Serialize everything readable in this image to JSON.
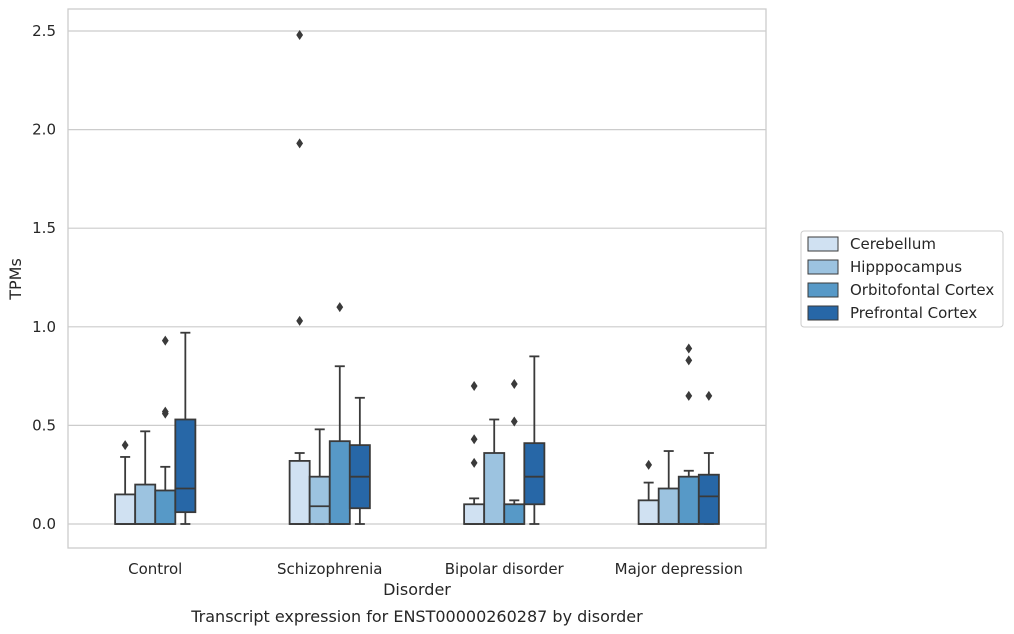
{
  "chart_data": {
    "type": "boxplot",
    "xlabel": "Disorder",
    "ylabel": "TPMs",
    "caption": "Transcript expression for ENST00000260287 by disorder",
    "ylim": [
      -0.12,
      2.62
    ],
    "yticks": [
      "0.0",
      "0.5",
      "1.0",
      "1.5",
      "2.0",
      "2.5"
    ],
    "grid": true,
    "legend_position": "right",
    "categories": [
      "Control",
      "Schizophrenia",
      "Bipolar disorder",
      "Major depression"
    ],
    "series": [
      {
        "name": "Cerebellum",
        "color": "#d0e1f2",
        "boxes": [
          {
            "q1": 0.0,
            "median": 0.0,
            "q3": 0.15,
            "whisker_low": 0.0,
            "whisker_high": 0.34,
            "outliers": [
              0.4
            ]
          },
          {
            "q1": 0.0,
            "median": 0.0,
            "q3": 0.32,
            "whisker_low": 0.0,
            "whisker_high": 0.36,
            "outliers": [
              1.03,
              1.93,
              2.48
            ]
          },
          {
            "q1": 0.0,
            "median": 0.0,
            "q3": 0.1,
            "whisker_low": 0.0,
            "whisker_high": 0.13,
            "outliers": [
              0.31,
              0.43,
              0.7
            ]
          },
          {
            "q1": 0.0,
            "median": 0.0,
            "q3": 0.12,
            "whisker_low": 0.0,
            "whisker_high": 0.21,
            "outliers": [
              0.3
            ]
          }
        ]
      },
      {
        "name": "Hipppocampus",
        "color": "#9cc3e0",
        "boxes": [
          {
            "q1": 0.0,
            "median": 0.0,
            "q3": 0.2,
            "whisker_low": 0.0,
            "whisker_high": 0.47,
            "outliers": []
          },
          {
            "q1": 0.0,
            "median": 0.09,
            "q3": 0.24,
            "whisker_low": 0.0,
            "whisker_high": 0.48,
            "outliers": []
          },
          {
            "q1": 0.0,
            "median": 0.0,
            "q3": 0.36,
            "whisker_low": 0.0,
            "whisker_high": 0.53,
            "outliers": []
          },
          {
            "q1": 0.0,
            "median": 0.0,
            "q3": 0.18,
            "whisker_low": 0.0,
            "whisker_high": 0.37,
            "outliers": []
          }
        ]
      },
      {
        "name": "Orbitofontal Cortex",
        "color": "#5799c7",
        "boxes": [
          {
            "q1": 0.0,
            "median": 0.0,
            "q3": 0.17,
            "whisker_low": 0.0,
            "whisker_high": 0.29,
            "outliers": [
              0.56,
              0.57,
              0.93
            ]
          },
          {
            "q1": 0.0,
            "median": 0.0,
            "q3": 0.42,
            "whisker_low": 0.0,
            "whisker_high": 0.8,
            "outliers": [
              1.1
            ]
          },
          {
            "q1": 0.0,
            "median": 0.0,
            "q3": 0.1,
            "whisker_low": 0.0,
            "whisker_high": 0.12,
            "outliers": [
              0.52,
              0.71
            ]
          },
          {
            "q1": 0.0,
            "median": 0.0,
            "q3": 0.24,
            "whisker_low": 0.0,
            "whisker_high": 0.27,
            "outliers": [
              0.65,
              0.83,
              0.89
            ]
          }
        ]
      },
      {
        "name": "Prefrontal Cortex",
        "color": "#2767a7",
        "boxes": [
          {
            "q1": 0.06,
            "median": 0.18,
            "q3": 0.53,
            "whisker_low": 0.0,
            "whisker_high": 0.97,
            "outliers": []
          },
          {
            "q1": 0.08,
            "median": 0.24,
            "q3": 0.4,
            "whisker_low": 0.0,
            "whisker_high": 0.64,
            "outliers": []
          },
          {
            "q1": 0.1,
            "median": 0.24,
            "q3": 0.41,
            "whisker_low": 0.0,
            "whisker_high": 0.85,
            "outliers": []
          },
          {
            "q1": 0.0,
            "median": 0.14,
            "q3": 0.25,
            "whisker_low": 0.0,
            "whisker_high": 0.36,
            "outliers": [
              0.65
            ]
          }
        ]
      }
    ]
  }
}
